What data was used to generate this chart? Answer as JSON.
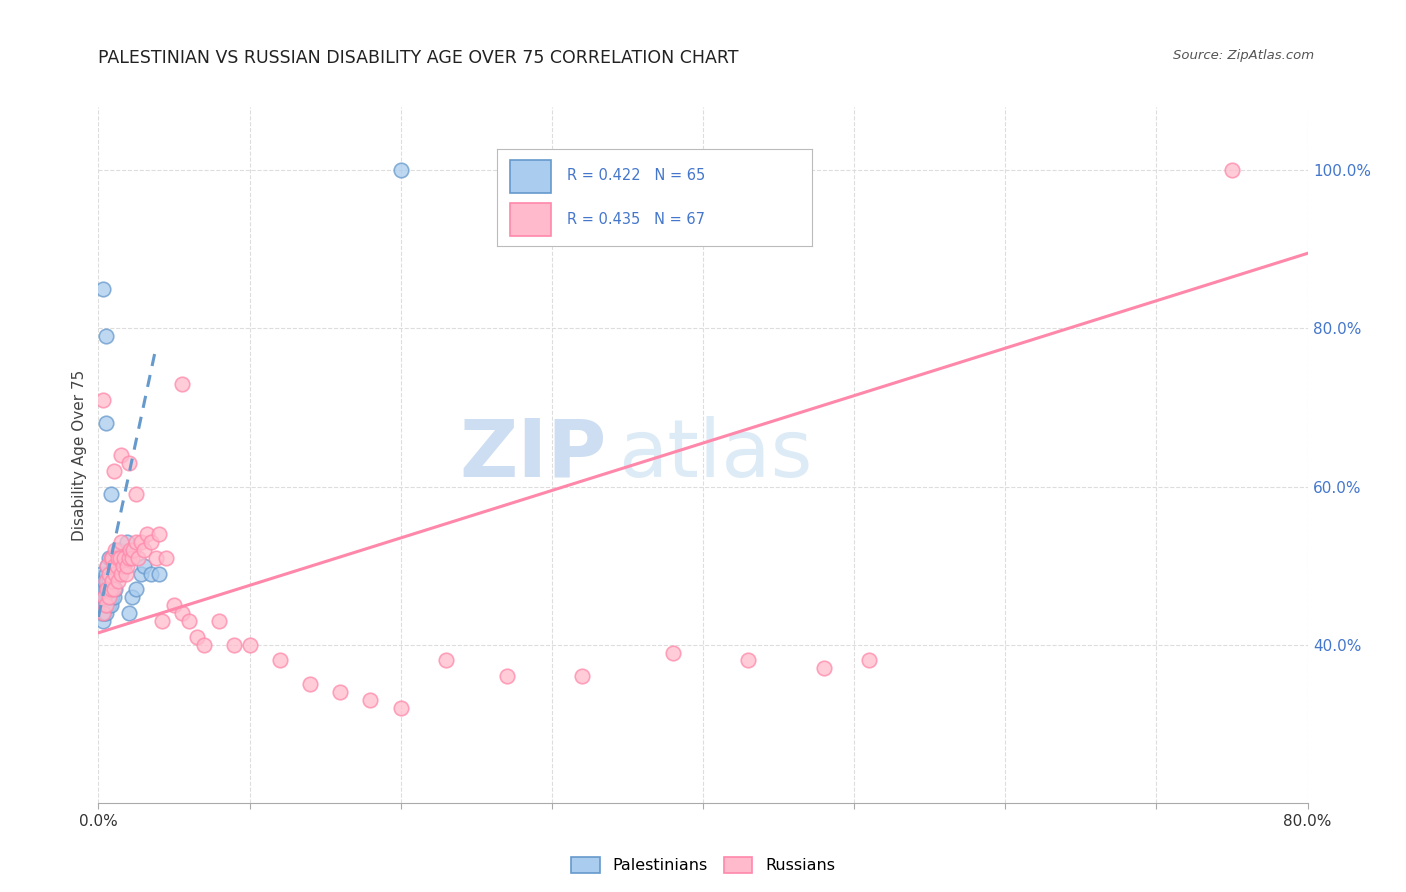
{
  "title": "PALESTINIAN VS RUSSIAN DISABILITY AGE OVER 75 CORRELATION CHART",
  "source": "Source: ZipAtlas.com",
  "ylabel": "Disability Age Over 75",
  "watermark_zip": "ZIP",
  "watermark_atlas": "atlas",
  "pal_color": "#6699CC",
  "pal_face": "#AACCEE",
  "rus_color": "#FF88AA",
  "rus_face": "#FFBBCC",
  "pal_R": 0.422,
  "pal_N": 65,
  "rus_R": 0.435,
  "rus_N": 67,
  "xlim": [
    0.0,
    0.8
  ],
  "ylim": [
    0.2,
    1.08
  ],
  "pal_line_x": [
    0.0,
    0.038
  ],
  "pal_line_y": [
    0.435,
    0.775
  ],
  "rus_line_x": [
    0.0,
    0.8
  ],
  "rus_line_y": [
    0.415,
    0.895
  ],
  "pal_x": [
    0.001,
    0.001,
    0.001,
    0.001,
    0.002,
    0.002,
    0.002,
    0.002,
    0.002,
    0.002,
    0.003,
    0.003,
    0.003,
    0.003,
    0.003,
    0.004,
    0.004,
    0.004,
    0.004,
    0.005,
    0.005,
    0.005,
    0.005,
    0.005,
    0.006,
    0.006,
    0.006,
    0.006,
    0.007,
    0.007,
    0.007,
    0.007,
    0.007,
    0.008,
    0.008,
    0.008,
    0.009,
    0.009,
    0.009,
    0.01,
    0.01,
    0.01,
    0.011,
    0.011,
    0.012,
    0.013,
    0.013,
    0.014,
    0.015,
    0.016,
    0.017,
    0.018,
    0.019,
    0.02,
    0.022,
    0.025,
    0.028,
    0.03,
    0.035,
    0.04,
    0.003,
    0.005,
    0.2,
    0.005,
    0.008
  ],
  "pal_y": [
    0.44,
    0.45,
    0.46,
    0.47,
    0.44,
    0.45,
    0.46,
    0.47,
    0.48,
    0.49,
    0.43,
    0.44,
    0.45,
    0.46,
    0.47,
    0.44,
    0.45,
    0.46,
    0.48,
    0.44,
    0.45,
    0.46,
    0.47,
    0.49,
    0.45,
    0.46,
    0.48,
    0.5,
    0.45,
    0.46,
    0.47,
    0.48,
    0.51,
    0.45,
    0.46,
    0.49,
    0.46,
    0.48,
    0.51,
    0.46,
    0.49,
    0.51,
    0.47,
    0.51,
    0.49,
    0.5,
    0.52,
    0.49,
    0.5,
    0.51,
    0.5,
    0.51,
    0.53,
    0.44,
    0.46,
    0.47,
    0.49,
    0.5,
    0.49,
    0.49,
    0.85,
    0.79,
    1.0,
    0.68,
    0.59
  ],
  "rus_x": [
    0.003,
    0.004,
    0.005,
    0.005,
    0.006,
    0.006,
    0.007,
    0.007,
    0.008,
    0.008,
    0.009,
    0.009,
    0.01,
    0.01,
    0.011,
    0.011,
    0.012,
    0.013,
    0.013,
    0.014,
    0.015,
    0.015,
    0.016,
    0.017,
    0.018,
    0.019,
    0.02,
    0.021,
    0.022,
    0.023,
    0.025,
    0.026,
    0.028,
    0.03,
    0.032,
    0.035,
    0.038,
    0.04,
    0.042,
    0.045,
    0.05,
    0.055,
    0.06,
    0.065,
    0.07,
    0.08,
    0.09,
    0.1,
    0.12,
    0.14,
    0.16,
    0.18,
    0.2,
    0.23,
    0.27,
    0.32,
    0.38,
    0.43,
    0.48,
    0.51,
    0.003,
    0.01,
    0.015,
    0.02,
    0.025,
    0.055,
    0.75
  ],
  "rus_y": [
    0.44,
    0.46,
    0.45,
    0.48,
    0.47,
    0.5,
    0.46,
    0.49,
    0.47,
    0.51,
    0.48,
    0.51,
    0.47,
    0.5,
    0.49,
    0.52,
    0.5,
    0.51,
    0.48,
    0.51,
    0.49,
    0.53,
    0.5,
    0.51,
    0.49,
    0.5,
    0.51,
    0.52,
    0.51,
    0.52,
    0.53,
    0.51,
    0.53,
    0.52,
    0.54,
    0.53,
    0.51,
    0.54,
    0.43,
    0.51,
    0.45,
    0.44,
    0.43,
    0.41,
    0.4,
    0.43,
    0.4,
    0.4,
    0.38,
    0.35,
    0.34,
    0.33,
    0.32,
    0.38,
    0.36,
    0.36,
    0.39,
    0.38,
    0.37,
    0.38,
    0.71,
    0.62,
    0.64,
    0.63,
    0.59,
    0.73,
    1.0
  ],
  "background_color": "#FFFFFF",
  "grid_color": "#DDDDDD",
  "right_tick_color": "#4477CC",
  "legend_text_color": "#4477CC"
}
